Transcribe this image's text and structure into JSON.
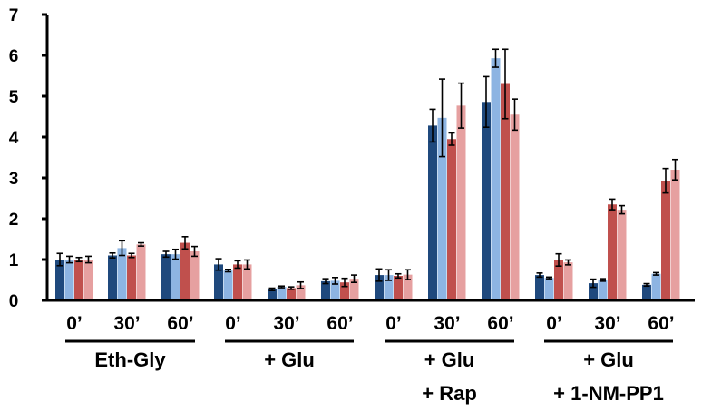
{
  "chart_data": {
    "type": "bar",
    "title": "",
    "xlabel": "",
    "ylabel": "",
    "ylim": [
      0,
      7
    ],
    "yticks": [
      0,
      1,
      2,
      3,
      4,
      5,
      6,
      7
    ],
    "grid": false,
    "legend": "none",
    "series_colors": [
      "#1F497D",
      "#8DB4E2",
      "#C0504D",
      "#E6A0A0"
    ],
    "groups": [
      {
        "label_lines": [
          "Eth-Gly"
        ],
        "timepoints": [
          {
            "label": "0’",
            "values": [
              1.0,
              1.0,
              1.0,
              1.0
            ],
            "errors": [
              0.15,
              0.08,
              0.05,
              0.08
            ]
          },
          {
            "label": "30’",
            "values": [
              1.1,
              1.28,
              1.1,
              1.37
            ],
            "errors": [
              0.06,
              0.18,
              0.05,
              0.04
            ]
          },
          {
            "label": "60’",
            "values": [
              1.13,
              1.13,
              1.41,
              1.2
            ],
            "errors": [
              0.07,
              0.12,
              0.15,
              0.12
            ]
          }
        ]
      },
      {
        "label_lines": [
          "+ Glu"
        ],
        "timepoints": [
          {
            "label": "0’",
            "values": [
              0.88,
              0.73,
              0.88,
              0.88
            ],
            "errors": [
              0.14,
              0.03,
              0.09,
              0.11
            ]
          },
          {
            "label": "30’",
            "values": [
              0.27,
              0.33,
              0.3,
              0.37
            ],
            "errors": [
              0.03,
              0.02,
              0.03,
              0.08
            ]
          },
          {
            "label": "60’",
            "values": [
              0.47,
              0.48,
              0.44,
              0.53
            ],
            "errors": [
              0.06,
              0.08,
              0.1,
              0.09
            ]
          }
        ]
      },
      {
        "label_lines": [
          "+ Glu",
          "+ Rap"
        ],
        "timepoints": [
          {
            "label": "0’",
            "values": [
              0.62,
              0.62,
              0.6,
              0.63
            ],
            "errors": [
              0.15,
              0.13,
              0.05,
              0.12
            ]
          },
          {
            "label": "30’",
            "values": [
              4.28,
              4.47,
              3.95,
              4.77
            ],
            "errors": [
              0.4,
              0.95,
              0.15,
              0.55
            ]
          },
          {
            "label": "60’",
            "values": [
              4.86,
              5.93,
              5.3,
              4.55
            ],
            "errors": [
              0.62,
              0.22,
              0.85,
              0.38
            ]
          }
        ]
      },
      {
        "label_lines": [
          "+ Glu",
          "+ 1-NM-PP1"
        ],
        "timepoints": [
          {
            "label": "0’",
            "values": [
              0.62,
              0.55,
              0.99,
              0.93
            ],
            "errors": [
              0.05,
              0.02,
              0.15,
              0.06
            ]
          },
          {
            "label": "30’",
            "values": [
              0.42,
              0.5,
              2.35,
              2.22
            ],
            "errors": [
              0.1,
              0.03,
              0.13,
              0.1
            ]
          },
          {
            "label": "60’",
            "values": [
              0.38,
              0.65,
              2.93,
              3.2
            ],
            "errors": [
              0.03,
              0.03,
              0.3,
              0.25
            ]
          }
        ]
      }
    ]
  }
}
